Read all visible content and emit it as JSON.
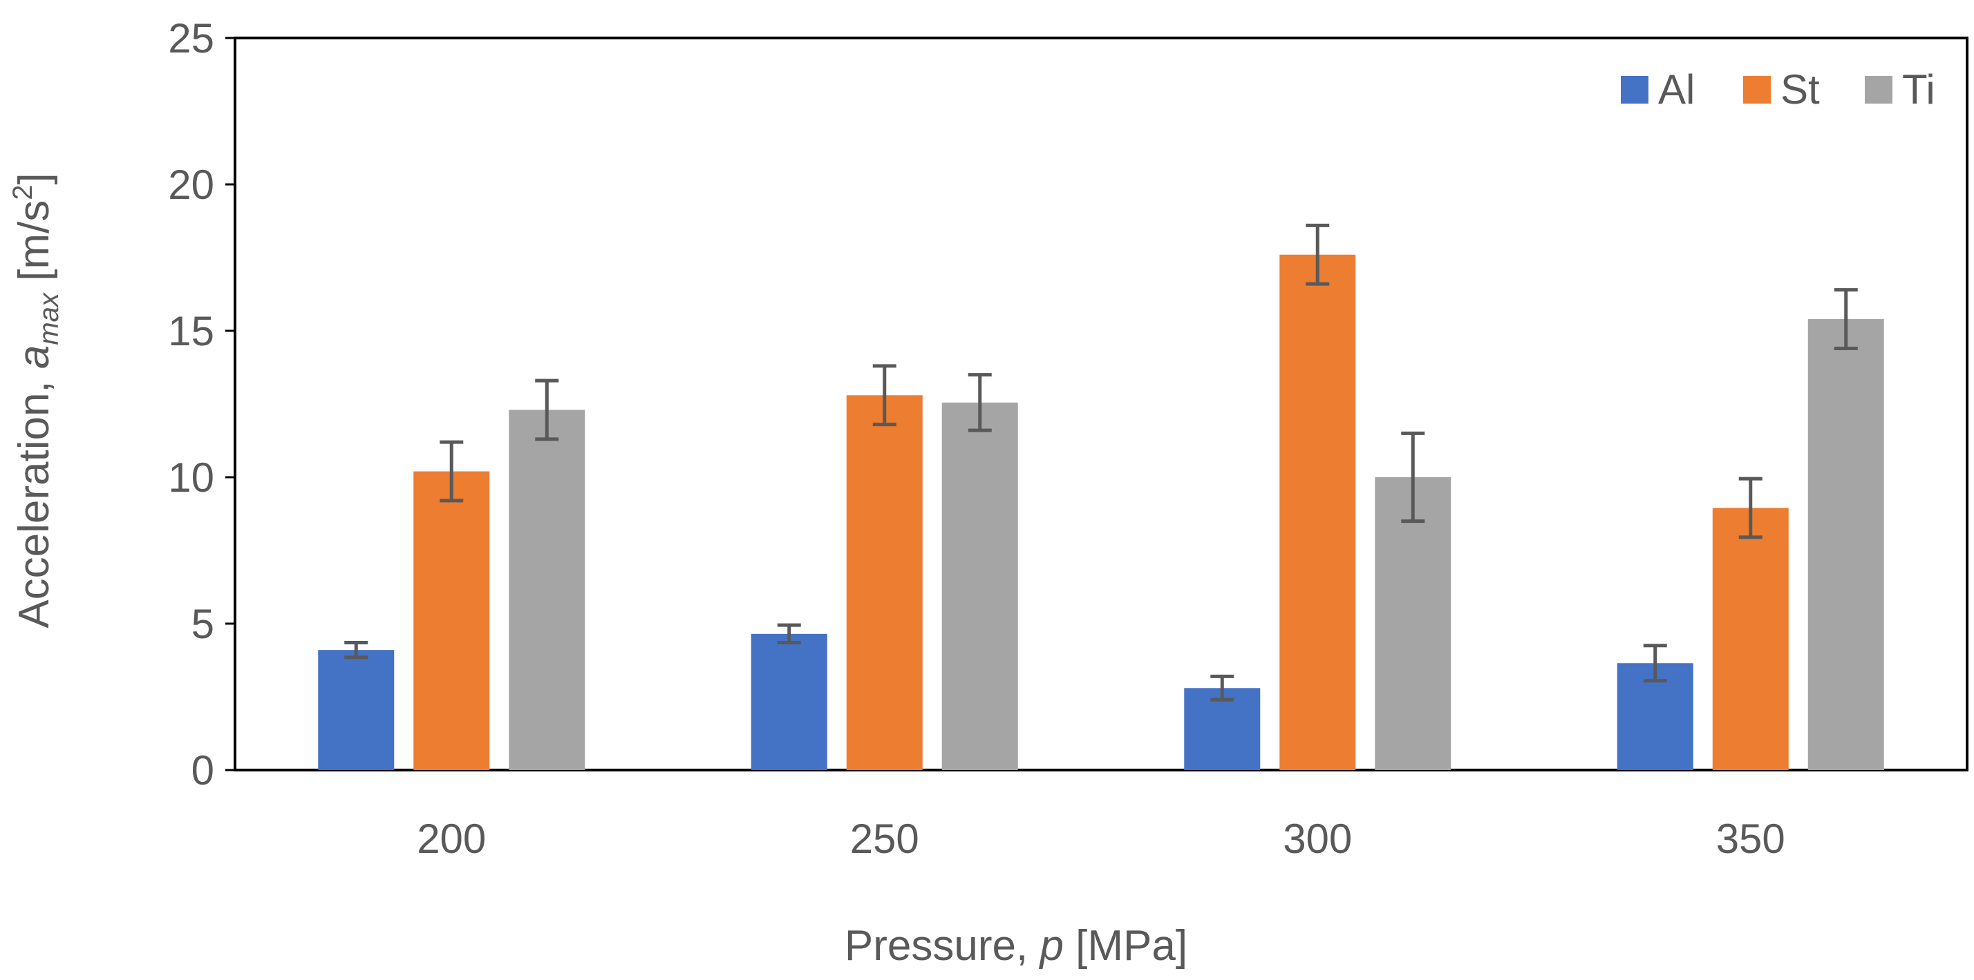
{
  "chart_data": {
    "type": "bar",
    "title": "",
    "xlabel": {
      "prefix": "Pressure, ",
      "var": "p",
      "suffix": " [MPa]"
    },
    "ylabel": {
      "prefix": "Acceleration, ",
      "var": "a",
      "sub": "max",
      "unit_pre": " [m/s",
      "unit_sup": "2",
      "unit_post": "]"
    },
    "categories": [
      "200",
      "250",
      "300",
      "350"
    ],
    "ylim": [
      0,
      25
    ],
    "yticks": [
      "0",
      "5",
      "10",
      "15",
      "20",
      "25"
    ],
    "series": [
      {
        "name": "Al",
        "color": "#4472C4",
        "values": [
          4.1,
          4.65,
          2.8,
          3.65
        ],
        "errors": [
          0.25,
          0.3,
          0.4,
          0.6
        ]
      },
      {
        "name": "St",
        "color": "#ED7D31",
        "values": [
          10.2,
          12.8,
          17.6,
          8.95
        ],
        "errors": [
          1.0,
          1.0,
          1.0,
          1.0
        ]
      },
      {
        "name": "Ti",
        "color": "#A5A5A5",
        "values": [
          12.3,
          12.55,
          10.0,
          15.4
        ],
        "errors": [
          1.0,
          0.95,
          1.5,
          1.0
        ]
      }
    ],
    "legend": {
      "position": "top-right"
    },
    "grid": false
  }
}
